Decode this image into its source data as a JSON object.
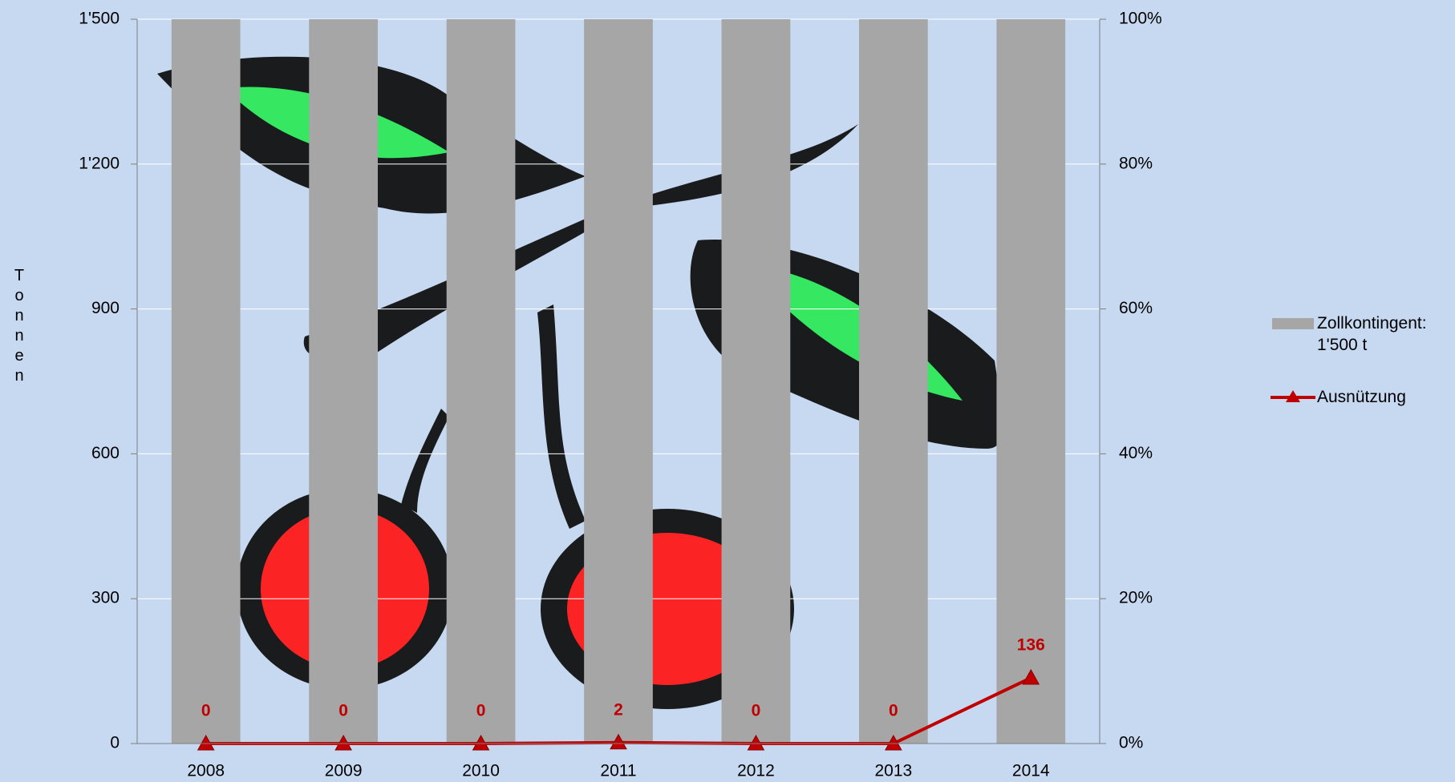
{
  "chart_data": {
    "type": "combo",
    "y_label": "Tonnen",
    "categories": [
      "2008",
      "2009",
      "2010",
      "2011",
      "2012",
      "2013",
      "2014"
    ],
    "series": [
      {
        "name": "Zollkontingent: 1'500 t",
        "type": "bar",
        "color": "#a6a6a6",
        "values": [
          1500,
          1500,
          1500,
          1500,
          1500,
          1500,
          1500
        ]
      },
      {
        "name": "Ausnützung",
        "type": "line",
        "color": "#c00000",
        "values": [
          0,
          0,
          0,
          2,
          0,
          0,
          136
        ]
      }
    ],
    "ylim": [
      0,
      1500
    ],
    "yticks": [
      0,
      300,
      600,
      900,
      {
        "value": 1200,
        "label": "1'200"
      },
      {
        "value": 1500,
        "label": "1'500"
      }
    ],
    "y2lim": [
      0,
      100
    ],
    "y2ticks": [
      {
        "value": 0,
        "label": "0%"
      },
      {
        "value": 20,
        "label": "20%"
      },
      {
        "value": 40,
        "label": "40%"
      },
      {
        "value": 60,
        "label": "60%"
      },
      {
        "value": 80,
        "label": "80%"
      },
      {
        "value": 100,
        "label": "100%"
      }
    ],
    "grid": true
  }
}
